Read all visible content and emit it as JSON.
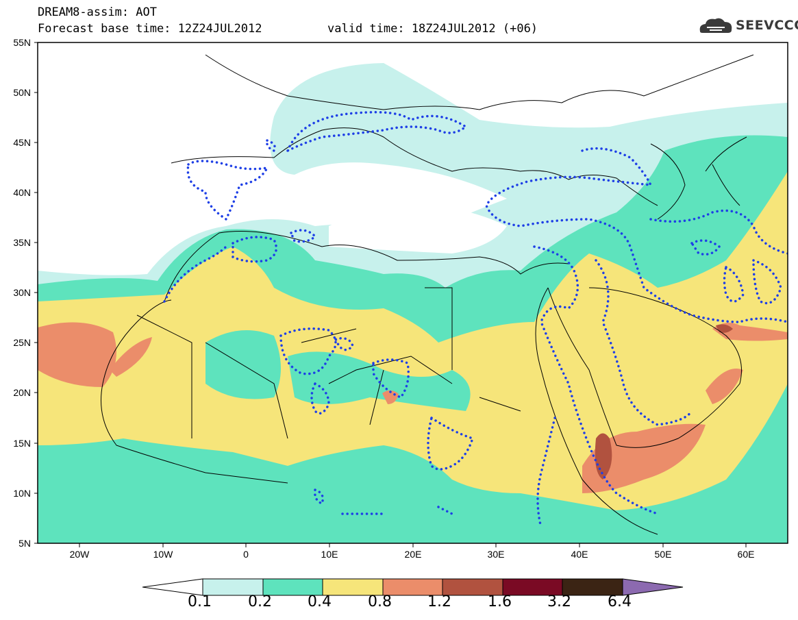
{
  "header": {
    "line1": "DREAM8-assim: AOT",
    "base_label": "Forecast base time: 12Z24JUL2012",
    "valid_label": "valid time: 18Z24JUL2012 (+06)",
    "logo_text": "SEEVCCC"
  },
  "axes": {
    "lat_labels": [
      "55N",
      "50N",
      "45N",
      "40N",
      "35N",
      "30N",
      "25N",
      "20N",
      "15N",
      "10N",
      "5N"
    ],
    "lon_labels": [
      "20W",
      "10W",
      "0",
      "10E",
      "20E",
      "30E",
      "40E",
      "50E",
      "60E"
    ]
  },
  "legend": {
    "ticks": [
      "0.1",
      "0.2",
      "0.4",
      "0.8",
      "1.2",
      "1.6",
      "3.2",
      "6.4"
    ],
    "colors": [
      "#c7f1ec",
      "#5ee3bd",
      "#f6e57a",
      "#eb8d6a",
      "#b1523f",
      "#7a0a24",
      "#3b2414",
      "#8c6ab0"
    ]
  },
  "overlay": {
    "contour_color": "#1e3fe6"
  }
}
